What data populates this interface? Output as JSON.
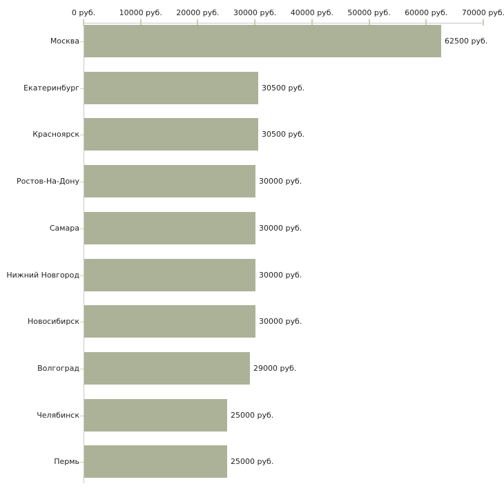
{
  "chart_data": {
    "type": "bar",
    "orientation": "horizontal",
    "title": "",
    "categories": [
      "Москва",
      "Екатеринбург",
      "Красноярск",
      "Ростов-На-Дону",
      "Самара",
      "Нижний Новгород",
      "Новосибирск",
      "Волгоград",
      "Челябинск",
      "Пермь"
    ],
    "values": [
      62500,
      30500,
      30500,
      30000,
      30000,
      30000,
      30000,
      29000,
      25000,
      25000
    ],
    "value_labels": [
      "62500 руб.",
      "30500 руб.",
      "30500 руб.",
      "30000 руб.",
      "30000 руб.",
      "30000 руб.",
      "30000 руб.",
      "29000 руб.",
      "25000 руб.",
      "25000 руб."
    ],
    "x_axis": {
      "position": "top",
      "min": 0,
      "max": 70000,
      "ticks": [
        0,
        10000,
        20000,
        30000,
        40000,
        50000,
        60000,
        70000
      ],
      "tick_labels": [
        "0 руб.",
        "10000 руб.",
        "20000 руб.",
        "30000 руб.",
        "40000 руб.",
        "50000 руб.",
        "60000 руб.",
        "70000 руб."
      ],
      "unit": "руб."
    },
    "ylabel": "",
    "xlabel": "",
    "grid": false,
    "legend": false,
    "colors": {
      "bar": "#acb297",
      "axis_line": "#c6c6c6",
      "tick": "#cdcdaa",
      "text": "#222222",
      "background": "#ffffff"
    }
  }
}
